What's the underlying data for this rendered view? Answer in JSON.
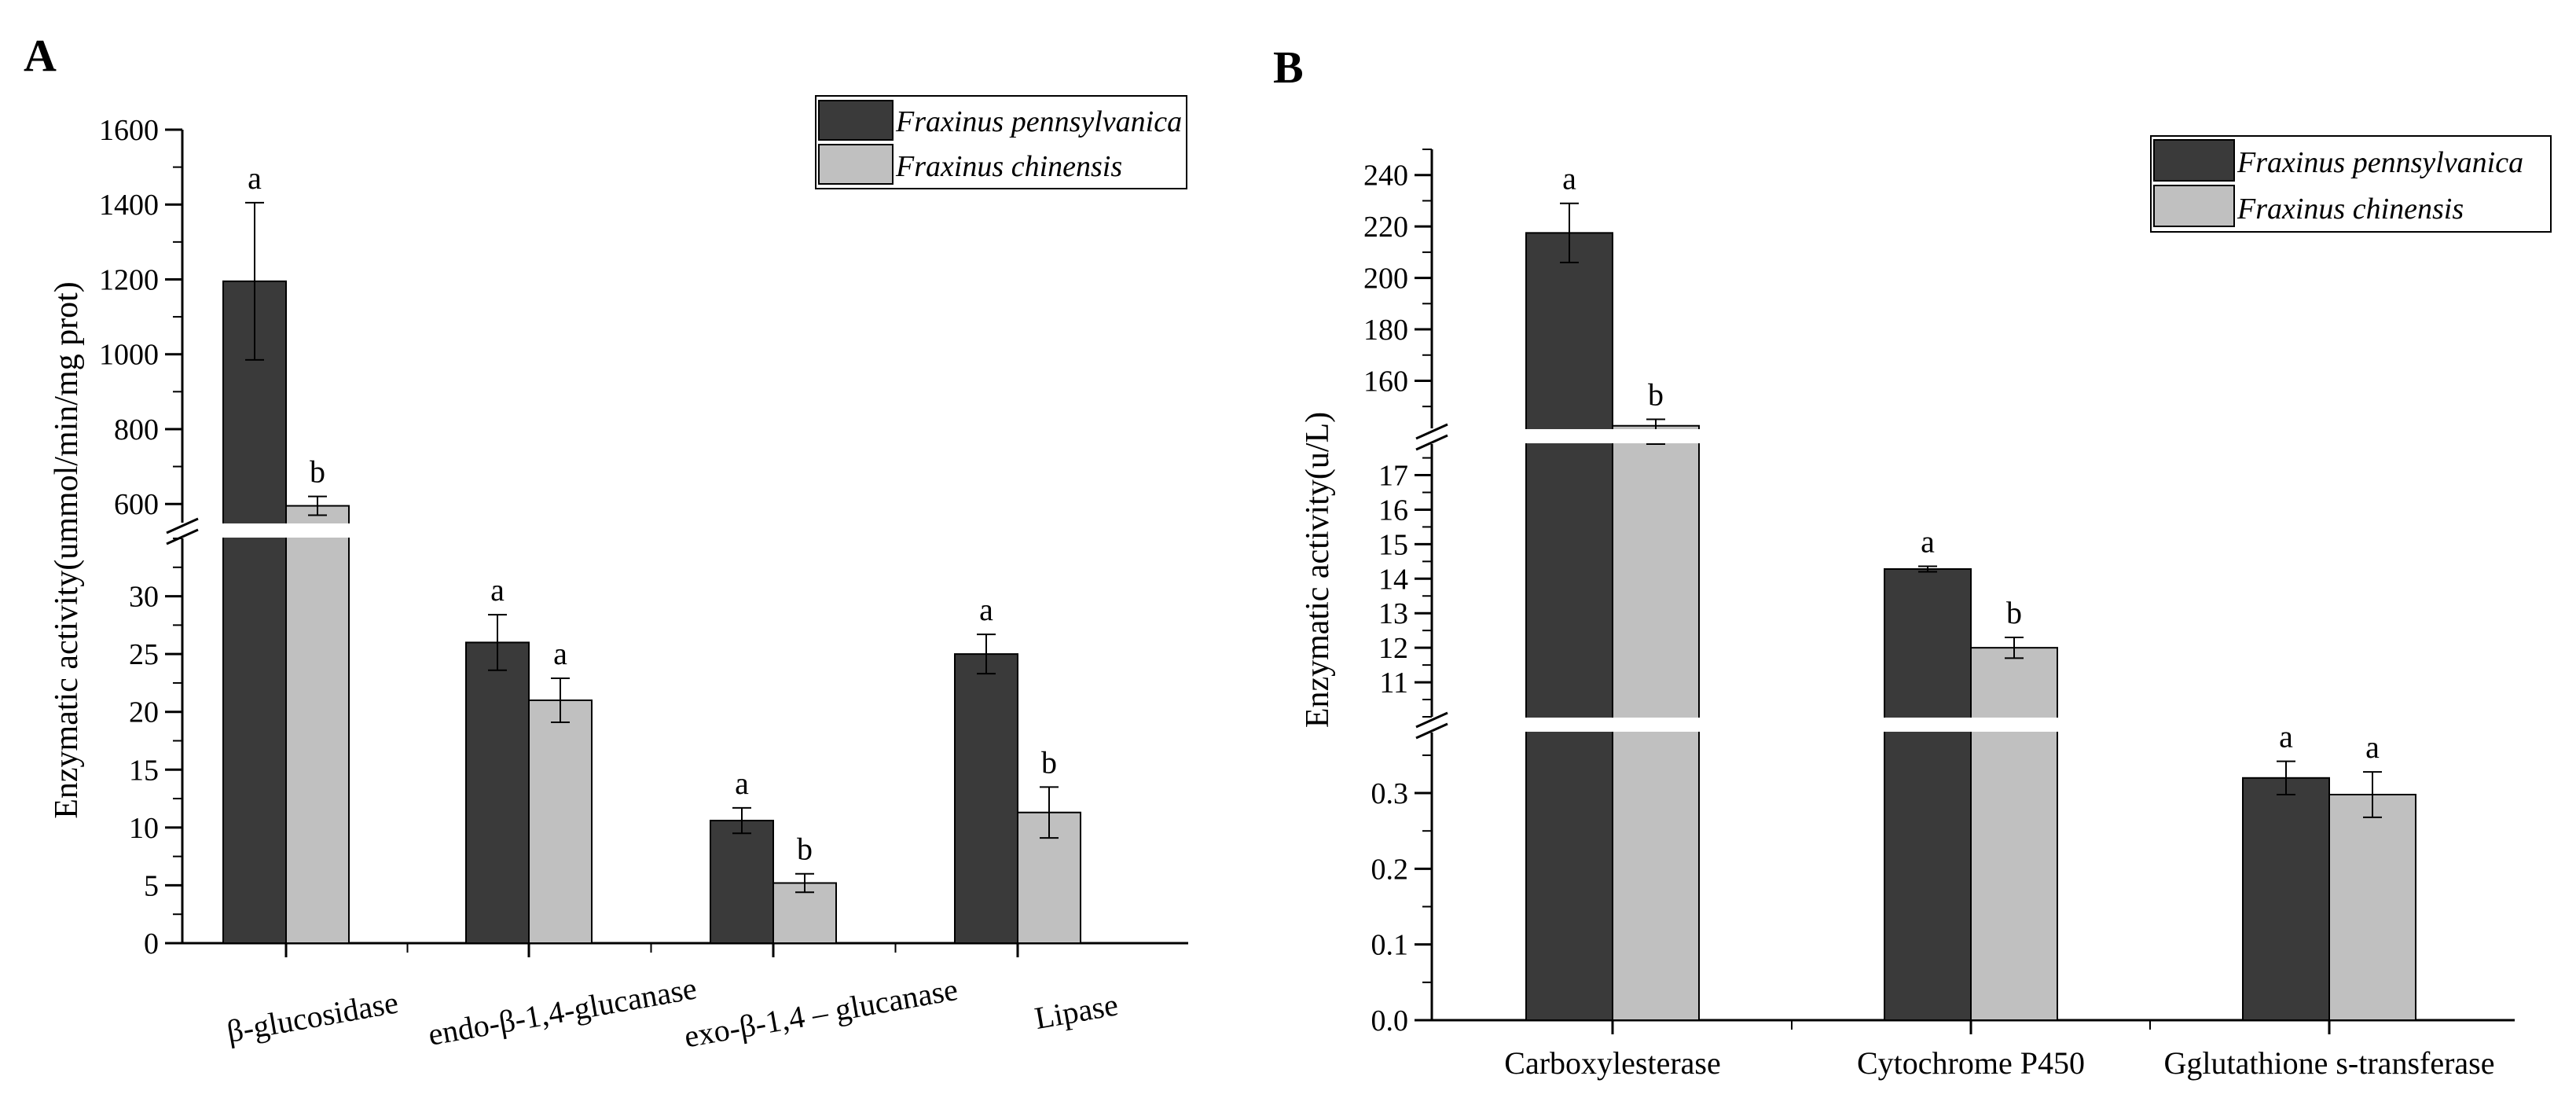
{
  "chart_data": [
    {
      "panel": "A",
      "type": "bar",
      "ylabel": "Enzymatic activity(ummol/min/mg prot)",
      "xlabel": "",
      "categories": [
        "β-glucosidase",
        "endo-β-1,4-glucanase",
        "exo-β-1,4 – glucanase",
        "Lipase"
      ],
      "series": [
        {
          "name": "Fraxinus pennsylvanica",
          "color": "#3a3a3a",
          "values": [
            1195,
            26.0,
            10.6,
            25.0
          ],
          "errors": [
            210,
            2.4,
            1.1,
            1.7
          ],
          "labels": [
            "a",
            "a",
            "a",
            "a"
          ]
        },
        {
          "name": "Fraxinus chinensis",
          "color": "#c0c0c0",
          "values": [
            595,
            21.0,
            5.2,
            11.3
          ],
          "errors": [
            25,
            1.9,
            0.8,
            2.2
          ],
          "labels": [
            "b",
            "a",
            "b",
            "b"
          ]
        }
      ],
      "axis_segments": [
        {
          "range": [
            0,
            35
          ],
          "ticks": [
            0,
            5,
            10,
            15,
            20,
            25,
            30
          ],
          "tick_labels": [
            "0",
            "5",
            "10",
            "15",
            "20",
            "25",
            "30"
          ]
        },
        {
          "range": [
            550,
            1600
          ],
          "ticks": [
            600,
            800,
            1000,
            1200,
            1400,
            1600
          ],
          "tick_labels": [
            "600",
            "800",
            "1000",
            "1200",
            "1400",
            "1600"
          ]
        }
      ],
      "legend": "top-right"
    },
    {
      "panel": "B",
      "type": "bar",
      "ylabel": "Enzymatic activity(u/L)",
      "xlabel": "",
      "categories": [
        "Carboxylesterase",
        "Cytochrome P450",
        "Gglutathione s-transferase"
      ],
      "series": [
        {
          "name": "Fraxinus pennsylvanica",
          "color": "#3a3a3a",
          "values": [
            217.5,
            14.28,
            0.32
          ],
          "errors": [
            11.5,
            0.08,
            0.022
          ],
          "labels": [
            "a",
            "a",
            "a"
          ]
        },
        {
          "name": "Fraxinus chinensis",
          "color": "#c0c0c0",
          "values": [
            142.5,
            12.0,
            0.298
          ],
          "errors": [
            2.5,
            0.3,
            0.03
          ],
          "labels": [
            "b",
            "b",
            "a"
          ]
        }
      ],
      "axis_segments": [
        {
          "range": [
            0,
            0.38
          ],
          "ticks": [
            0.0,
            0.1,
            0.2,
            0.3
          ],
          "tick_labels": [
            "0.0",
            "0.1",
            "0.2",
            "0.3"
          ]
        },
        {
          "range": [
            10,
            17.9
          ],
          "ticks": [
            11,
            12,
            13,
            14,
            15,
            16,
            17
          ],
          "tick_labels": [
            "11",
            "12",
            "13",
            "14",
            "15",
            "16",
            "17"
          ]
        },
        {
          "range": [
            141.5,
            250
          ],
          "ticks": [
            160,
            180,
            200,
            220,
            240
          ],
          "tick_labels": [
            "160",
            "180",
            "200",
            "220",
            "240"
          ]
        }
      ],
      "legend": "top-right"
    }
  ]
}
